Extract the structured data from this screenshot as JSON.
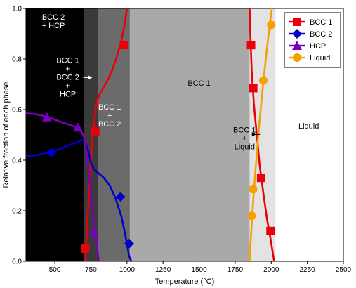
{
  "chart_data": {
    "type": "line",
    "xlabel": "Temperature (°C)",
    "ylabel": "Relative fraction of each phase",
    "xlim": [
      300,
      2500
    ],
    "ylim": [
      0,
      1.0
    ],
    "xticks": [
      500,
      750,
      1000,
      1250,
      1500,
      1750,
      2000,
      2250,
      2500
    ],
    "yticks": [
      0.0,
      0.2,
      0.4,
      0.6,
      0.8,
      1.0
    ],
    "xtick_labels": [
      "500",
      "750",
      "1000",
      "1250",
      "1500",
      "1750",
      "2000",
      "2250",
      "2500"
    ],
    "ytick_labels": [
      "0.0",
      "0.2",
      "0.4",
      "0.6",
      "0.8",
      "1.0"
    ],
    "legend_position": "top-right",
    "regions": [
      {
        "from": 300,
        "to": 700,
        "color": "#000000",
        "label_lines": [
          "BCC 2",
          "+ HCP"
        ],
        "text_color": "#ffffff",
        "label_x": 490,
        "label_y": 0.955
      },
      {
        "from": 700,
        "to": 800,
        "color": "#3a3a3a",
        "label_lines": [
          "BCC 1",
          "+",
          "BCC 2",
          "+",
          "HCP"
        ],
        "text_color": "#ffffff",
        "label_x": 590,
        "label_y": 0.785,
        "arrow": true
      },
      {
        "from": 800,
        "to": 1020,
        "color": "#6b6b6b",
        "label_lines": [
          "BCC 1",
          "+",
          "BCC 2"
        ],
        "text_color": "#ffffff",
        "label_x": 880,
        "label_y": 0.6
      },
      {
        "from": 1020,
        "to": 1850,
        "color": "#a9a9a9",
        "label_lines": [
          "BCC 1"
        ],
        "text_color": "#000000",
        "label_x": 1500,
        "label_y": 0.695
      },
      {
        "from": 1850,
        "to": 2030,
        "color": "#e3e3e3",
        "label_lines": [
          "BCC 1",
          "+",
          "Liquid"
        ],
        "text_color": "#000000",
        "label_x": 1815,
        "label_y": 0.51,
        "arrow": true
      },
      {
        "from": 2030,
        "to": 2500,
        "color": "#ffffff",
        "label_lines": [
          "Liquid"
        ],
        "text_color": "#000000",
        "label_x": 2260,
        "label_y": 0.525
      }
    ],
    "series": [
      {
        "name": "BCC 1",
        "color": "#e8000b",
        "marker": "square",
        "line": [
          [
            712,
            0.0
          ],
          [
            725,
            0.15
          ],
          [
            745,
            0.35
          ],
          [
            760,
            0.48
          ],
          [
            775,
            0.56
          ],
          [
            790,
            0.63
          ],
          [
            810,
            0.66
          ],
          [
            840,
            0.69
          ],
          [
            870,
            0.72
          ],
          [
            900,
            0.76
          ],
          [
            930,
            0.81
          ],
          [
            960,
            0.87
          ],
          [
            985,
            0.94
          ],
          [
            1000,
            1.0
          ]
        ],
        "markers": [
          [
            710,
            0.05
          ],
          [
            780,
            0.515
          ],
          [
            980,
            0.855
          ]
        ],
        "line2": [
          [
            1850,
            1.0
          ],
          [
            1855,
            0.9
          ],
          [
            1865,
            0.75
          ],
          [
            1880,
            0.62
          ],
          [
            1900,
            0.5
          ],
          [
            1920,
            0.38
          ],
          [
            1945,
            0.27
          ],
          [
            1970,
            0.17
          ],
          [
            1995,
            0.09
          ],
          [
            2020,
            0.0
          ]
        ],
        "markers2": [
          [
            1860,
            0.855
          ],
          [
            1875,
            0.685
          ],
          [
            1930,
            0.33
          ],
          [
            1995,
            0.12
          ]
        ]
      },
      {
        "name": "BCC 2",
        "color": "#0000c8",
        "marker": "diamond",
        "line": [
          [
            300,
            0.415
          ],
          [
            350,
            0.418
          ],
          [
            420,
            0.425
          ],
          [
            480,
            0.433
          ],
          [
            540,
            0.445
          ],
          [
            600,
            0.46
          ],
          [
            650,
            0.47
          ],
          [
            690,
            0.48
          ],
          [
            710,
            0.47
          ],
          [
            730,
            0.44
          ],
          [
            750,
            0.39
          ],
          [
            770,
            0.365
          ],
          [
            800,
            0.35
          ],
          [
            840,
            0.33
          ],
          [
            880,
            0.3
          ],
          [
            920,
            0.25
          ],
          [
            960,
            0.18
          ],
          [
            990,
            0.1
          ],
          [
            1015,
            0.02
          ],
          [
            1030,
            0.0
          ]
        ],
        "markers": [
          [
            475,
            0.43
          ],
          [
            955,
            0.255
          ],
          [
            1015,
            0.07
          ]
        ]
      },
      {
        "name": "HCP",
        "color": "#7a00bd",
        "marker": "triangle",
        "line": [
          [
            300,
            0.585
          ],
          [
            350,
            0.583
          ],
          [
            400,
            0.578
          ],
          [
            450,
            0.57
          ],
          [
            500,
            0.56
          ],
          [
            550,
            0.55
          ],
          [
            600,
            0.54
          ],
          [
            650,
            0.53
          ],
          [
            680,
            0.515
          ],
          [
            700,
            0.495
          ],
          [
            715,
            0.45
          ],
          [
            730,
            0.38
          ],
          [
            745,
            0.3
          ],
          [
            760,
            0.22
          ],
          [
            775,
            0.14
          ],
          [
            790,
            0.07
          ],
          [
            800,
            0.02
          ],
          [
            805,
            0.0
          ]
        ],
        "markers": [
          [
            445,
            0.57
          ],
          [
            660,
            0.53
          ],
          [
            770,
            0.115
          ]
        ]
      },
      {
        "name": "Liquid",
        "color": "#f4a000",
        "marker": "circle",
        "line": [
          [
            1850,
            0.0
          ],
          [
            1862,
            0.12
          ],
          [
            1875,
            0.24
          ],
          [
            1888,
            0.34
          ],
          [
            1902,
            0.44
          ],
          [
            1915,
            0.53
          ],
          [
            1930,
            0.62
          ],
          [
            1945,
            0.71
          ],
          [
            1962,
            0.8
          ],
          [
            1980,
            0.89
          ],
          [
            1995,
            0.96
          ],
          [
            2005,
            1.0
          ]
        ],
        "markers": [
          [
            1865,
            0.18
          ],
          [
            1875,
            0.285
          ],
          [
            1945,
            0.715
          ],
          [
            2000,
            0.935
          ]
        ]
      }
    ]
  }
}
